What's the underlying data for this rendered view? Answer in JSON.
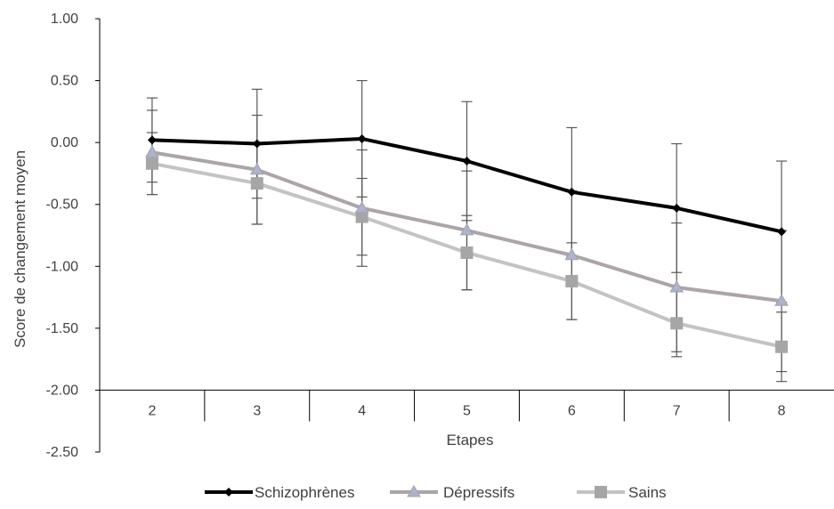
{
  "chart_data": {
    "type": "line",
    "title": "",
    "xlabel": "Etapes",
    "ylabel": "Score de changement moyen",
    "categories": [
      "2",
      "3",
      "4",
      "5",
      "6",
      "7",
      "8"
    ],
    "ylim": [
      -2.5,
      1.0
    ],
    "yticks": [
      "1.00",
      "0.50",
      "0.00",
      "-0.50",
      "-1.00",
      "-1.50",
      "-2.00",
      "-2.50"
    ],
    "x_axis_crosses_at": -2.0,
    "grid": false,
    "legend_position": "bottom",
    "series": [
      {
        "name": "Schizophrènes",
        "color": "#000000",
        "marker": "diamond",
        "values": [
          0.02,
          -0.01,
          0.03,
          -0.15,
          -0.4,
          -0.53,
          -0.72
        ],
        "error": [
          0.34,
          0.44,
          0.47,
          0.48,
          0.52,
          0.52,
          0.57
        ]
      },
      {
        "name": "Dépressifs",
        "color": "#ABA5A9",
        "marker": "triangle",
        "values": [
          -0.08,
          -0.22,
          -0.53,
          -0.71,
          -0.91,
          -1.17,
          -1.28
        ],
        "error": [
          0.34,
          0.44,
          0.47,
          0.48,
          0.52,
          0.52,
          0.57
        ]
      },
      {
        "name": "Sains",
        "color": "#C3C3C3",
        "marker": "square",
        "values": [
          -0.17,
          -0.33,
          -0.6,
          -0.89,
          -1.12,
          -1.46,
          -1.65
        ],
        "error": [
          0.25,
          0.33,
          0.31,
          0.3,
          0.31,
          0.27,
          0.28
        ]
      }
    ]
  }
}
